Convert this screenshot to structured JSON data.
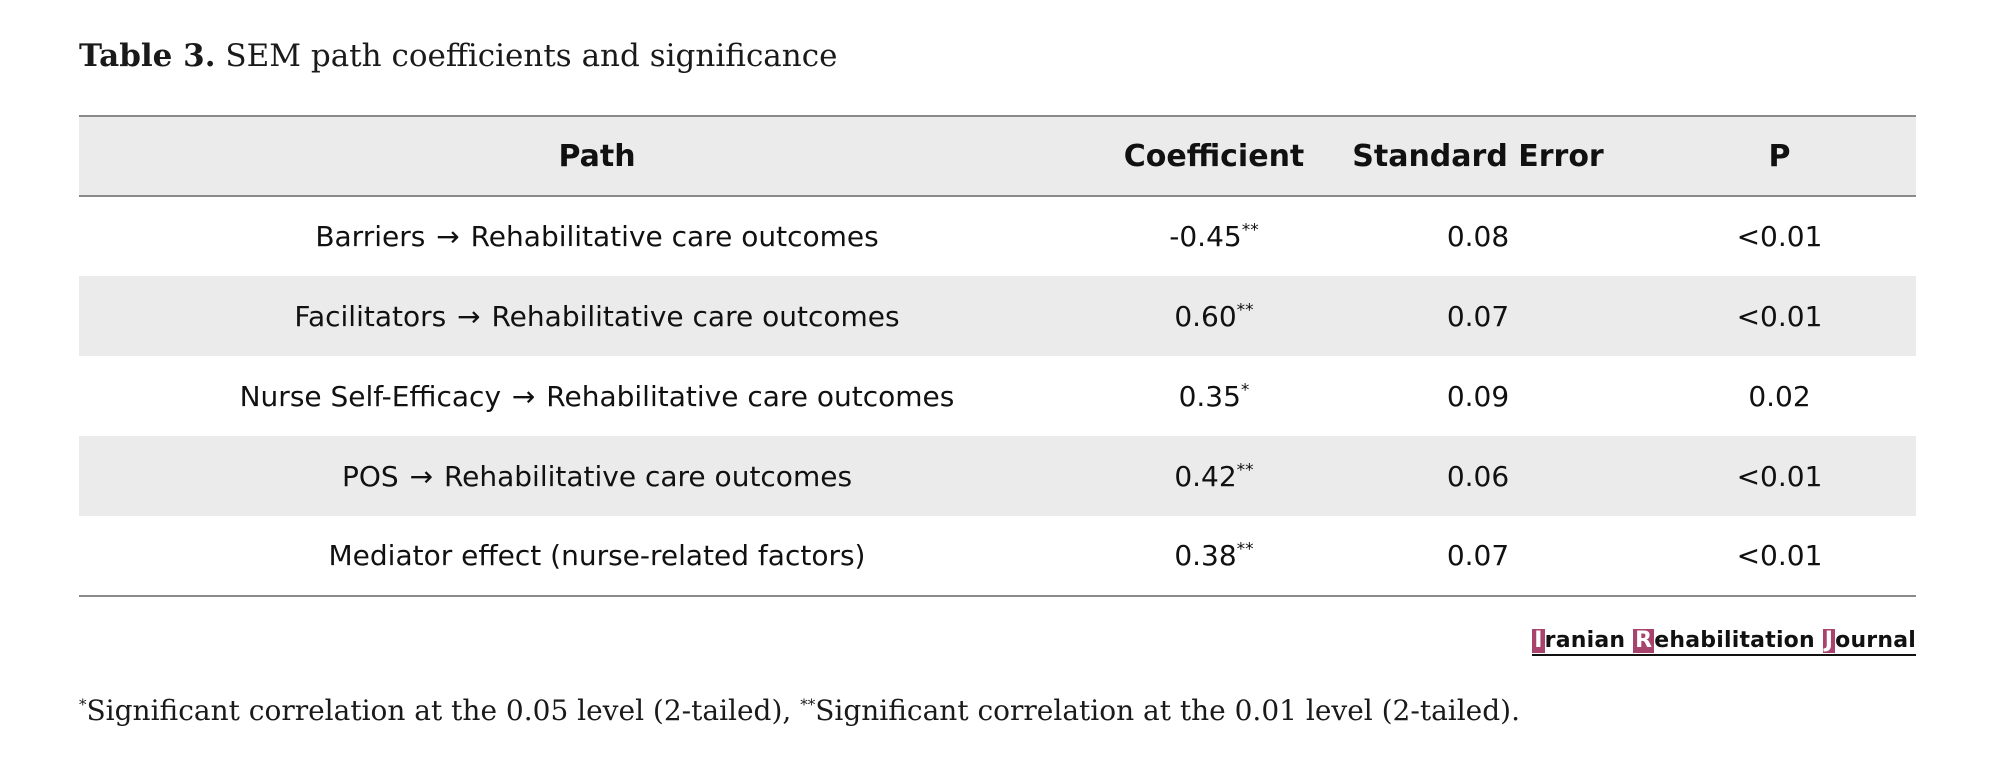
{
  "caption": {
    "label": "Table 3.",
    "title": "SEM path coefficients and significance"
  },
  "table": {
    "headers": [
      "Path",
      "Coefficient",
      "Standard Error",
      "P"
    ],
    "arrow": "→",
    "rows": [
      {
        "from": "Barriers",
        "to": "Rehabilitative care outcomes",
        "coefficient": "-0.45",
        "sig": "**",
        "se": "0.08",
        "p": "<0.01"
      },
      {
        "from": "Facilitators",
        "to": "Rehabilitative care outcomes",
        "coefficient": "0.60",
        "sig": "**",
        "se": "0.07",
        "p": "<0.01"
      },
      {
        "from": "Nurse Self-Efficacy",
        "to": "Rehabilitative care outcomes",
        "coefficient": "0.35",
        "sig": "*",
        "se": "0.09",
        "p": "0.02"
      },
      {
        "from": "POS",
        "to": "Rehabilitative care outcomes",
        "coefficient": "0.42",
        "sig": "**",
        "se": "0.06",
        "p": "<0.01"
      },
      {
        "from": "Mediator effect (nurse-related factors)",
        "to": "",
        "coefficient": "0.38",
        "sig": "**",
        "se": "0.07",
        "p": "<0.01"
      }
    ]
  },
  "journal_logo": {
    "parts": [
      {
        "initial": "I",
        "rest": "ranian "
      },
      {
        "initial": "R",
        "rest": "ehabilitation "
      },
      {
        "initial": "J",
        "rest": "ournal"
      }
    ],
    "accent_color": "#a8436e"
  },
  "footnote": {
    "mark1": "*",
    "text1": "Significant correlation at the 0.05 level (2-tailed), ",
    "mark2": "**",
    "text2": "Significant correlation at the 0.01 level (2-tailed)."
  }
}
